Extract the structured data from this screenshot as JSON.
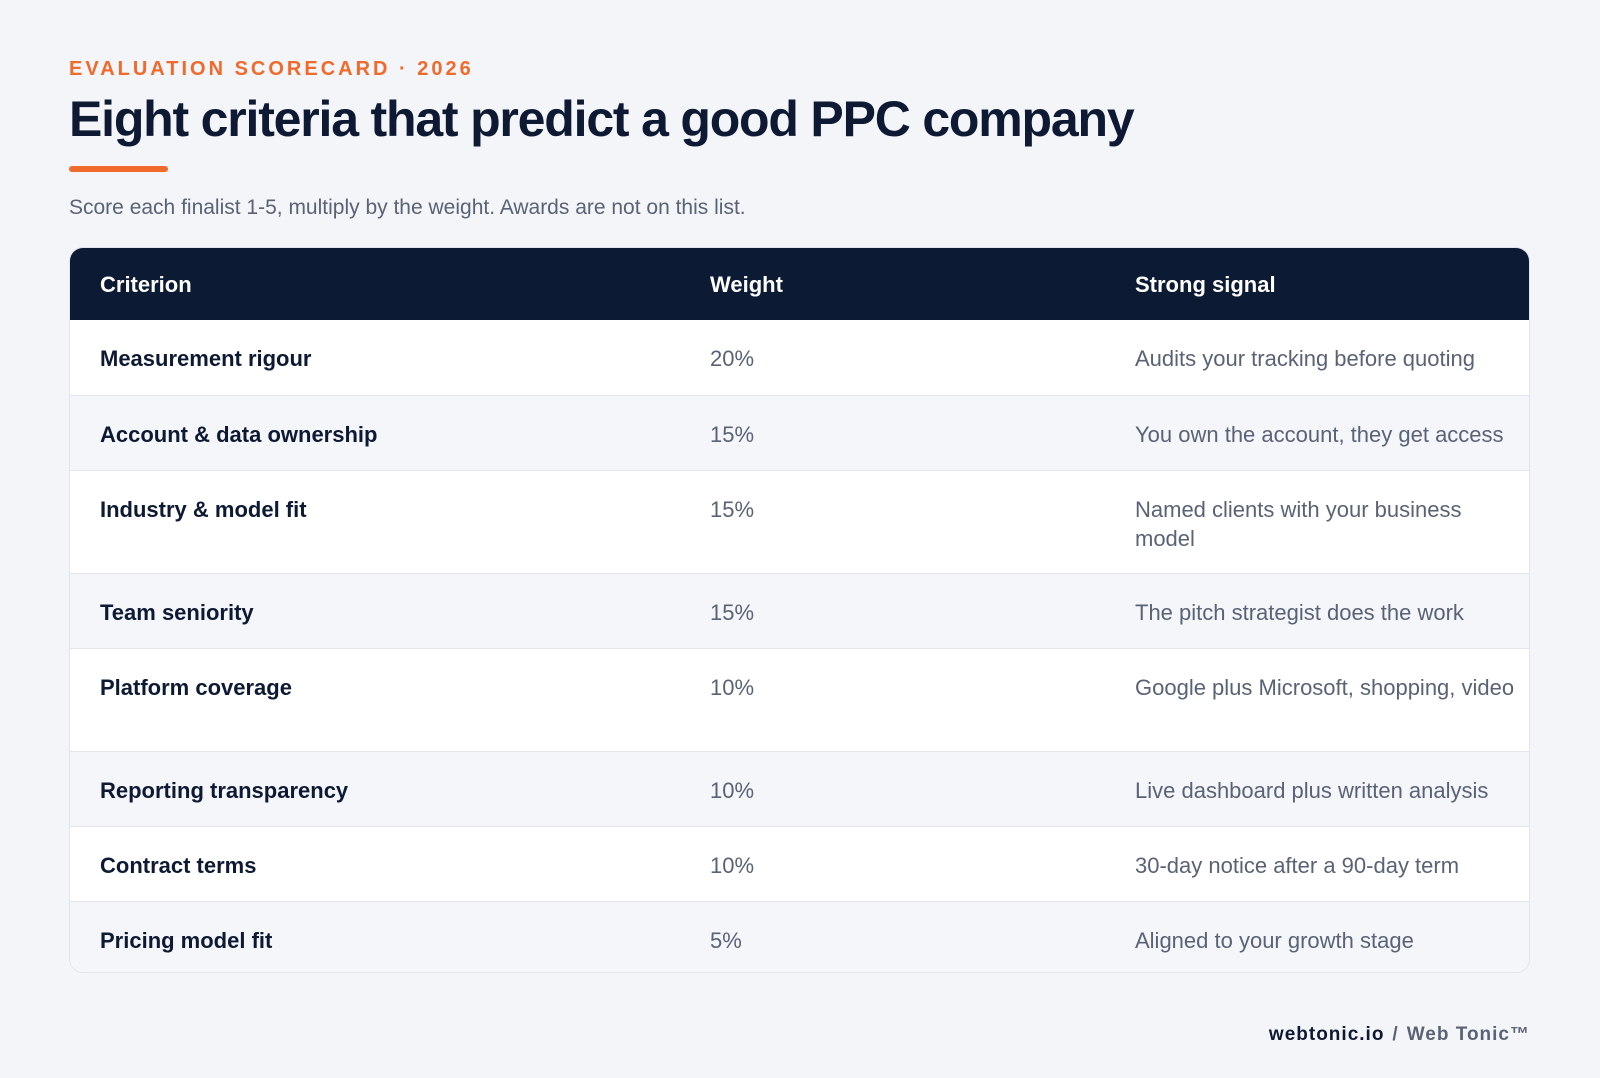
{
  "header": {
    "eyebrow": "EVALUATION SCORECARD · 2026",
    "title": "Eight criteria that predict a good PPC company",
    "subtitle": "Score each finalist 1-5, multiply by the weight. Awards are not on this list.",
    "accent_color": "#f06a2c"
  },
  "table": {
    "columns": [
      "Criterion",
      "Weight",
      "Strong signal"
    ],
    "header_bg": "#0c1a33",
    "rows": [
      {
        "criterion": "Measurement rigour",
        "weight": "20%",
        "signal": "Audits your tracking before quoting"
      },
      {
        "criterion": "Account & data ownership",
        "weight": "15%",
        "signal": "You own the account, they get access"
      },
      {
        "criterion": "Industry & model fit",
        "weight": "15%",
        "signal": "Named clients with your business model"
      },
      {
        "criterion": "Team seniority",
        "weight": "15%",
        "signal": "The pitch strategist does the work"
      },
      {
        "criterion": "Platform coverage",
        "weight": "10%",
        "signal": "Google plus Microsoft, shopping, video"
      },
      {
        "criterion": "Reporting transparency",
        "weight": "10%",
        "signal": "Live dashboard plus written analysis"
      },
      {
        "criterion": "Contract terms",
        "weight": "10%",
        "signal": "30-day notice after a 90-day term"
      },
      {
        "criterion": "Pricing model fit",
        "weight": "5%",
        "signal": "Aligned to your growth stage"
      }
    ]
  },
  "footer": {
    "domain": "webtonic.io",
    "separator": "/",
    "brand": "Web Tonic™"
  }
}
